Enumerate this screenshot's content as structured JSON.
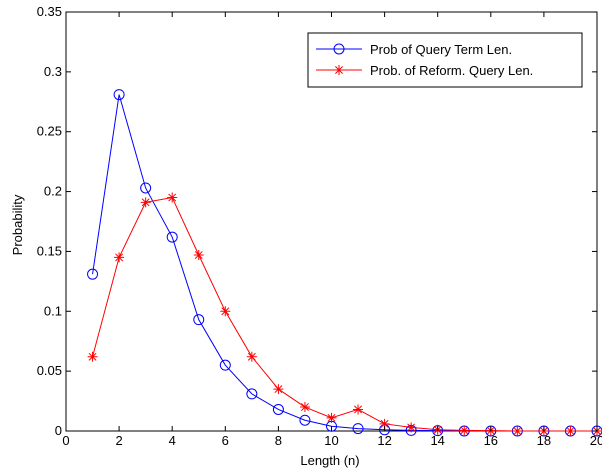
{
  "chart_data": {
    "type": "line",
    "xlabel": "Length (n)",
    "ylabel": "Probability",
    "xlim": [
      0,
      20
    ],
    "ylim": [
      0,
      0.35
    ],
    "x_ticks": [
      "0",
      "2",
      "4",
      "6",
      "8",
      "10",
      "12",
      "14",
      "16",
      "18",
      "20"
    ],
    "y_ticks": [
      "0",
      "0.05",
      "0.1",
      "0.15",
      "0.2",
      "0.25",
      "0.3",
      "0.35"
    ],
    "grid": false,
    "legend_position": "top-right",
    "series": [
      {
        "name": "Prob of Query Term Len.",
        "color": "#0000ff",
        "marker": "circle",
        "x": [
          1,
          2,
          3,
          4,
          5,
          6,
          7,
          8,
          9,
          10,
          11,
          12,
          13,
          14,
          15,
          16,
          17,
          18,
          19,
          20
        ],
        "values": [
          0.131,
          0.281,
          0.203,
          0.162,
          0.093,
          0.055,
          0.031,
          0.018,
          0.009,
          0.004,
          0.002,
          0.001,
          0.0005,
          0.0003,
          0,
          0,
          0,
          0,
          0,
          0
        ]
      },
      {
        "name": "Prob. of Reform. Query Len.",
        "color": "#ff0000",
        "marker": "star",
        "x": [
          1,
          2,
          3,
          4,
          5,
          6,
          7,
          8,
          9,
          10,
          11,
          12,
          13,
          14,
          15,
          16,
          17,
          18,
          19,
          20
        ],
        "values": [
          0.062,
          0.145,
          0.191,
          0.195,
          0.147,
          0.1,
          0.062,
          0.035,
          0.02,
          0.011,
          0.018,
          0.006,
          0.003,
          0.001,
          0.0005,
          0.0003,
          0,
          0,
          0,
          0
        ]
      }
    ]
  }
}
